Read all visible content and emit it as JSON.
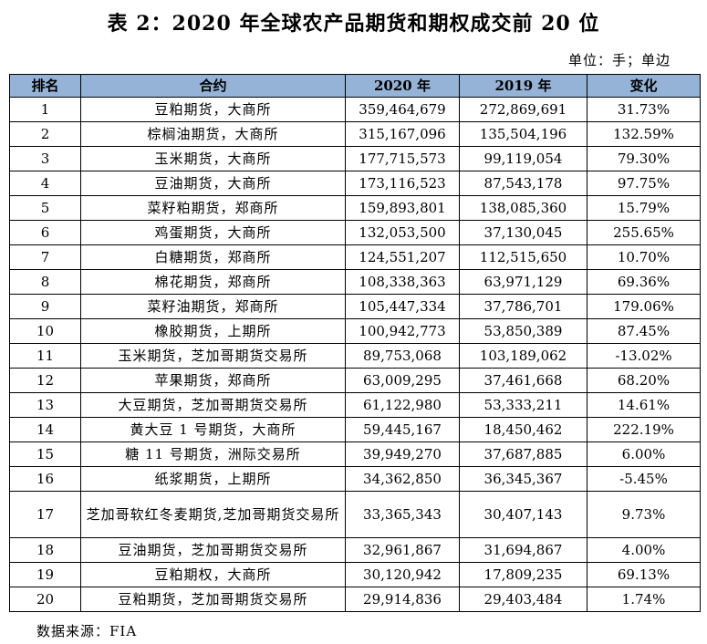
{
  "title": "表 2：2020 年全球农产品期货和期权成交前 20 位",
  "unit_note": "单位：手；单边",
  "table": {
    "headers": [
      "排名",
      "合约",
      "2020 年",
      "2019 年",
      "变化"
    ],
    "rows": [
      {
        "rank": "1",
        "contract": "豆粕期货，大商所",
        "y2020": "359,464,679",
        "y2019": "272,869,691",
        "change": "31.73%"
      },
      {
        "rank": "2",
        "contract": "棕榈油期货，大商所",
        "y2020": "315,167,096",
        "y2019": "135,504,196",
        "change": "132.59%"
      },
      {
        "rank": "3",
        "contract": "玉米期货，大商所",
        "y2020": "177,715,573",
        "y2019": "99,119,054",
        "change": "79.30%"
      },
      {
        "rank": "4",
        "contract": "豆油期货，大商所",
        "y2020": "173,116,523",
        "y2019": "87,543,178",
        "change": "97.75%"
      },
      {
        "rank": "5",
        "contract": "菜籽粕期货，郑商所",
        "y2020": "159,893,801",
        "y2019": "138,085,360",
        "change": "15.79%"
      },
      {
        "rank": "6",
        "contract": "鸡蛋期货，大商所",
        "y2020": "132,053,500",
        "y2019": "37,130,045",
        "change": "255.65%"
      },
      {
        "rank": "7",
        "contract": "白糖期货，郑商所",
        "y2020": "124,551,207",
        "y2019": "112,515,650",
        "change": "10.70%"
      },
      {
        "rank": "8",
        "contract": "棉花期货，郑商所",
        "y2020": "108,338,363",
        "y2019": "63,971,129",
        "change": "69.36%"
      },
      {
        "rank": "9",
        "contract": "菜籽油期货，郑商所",
        "y2020": "105,447,334",
        "y2019": "37,786,701",
        "change": "179.06%"
      },
      {
        "rank": "10",
        "contract": "橡胶期货，上期所",
        "y2020": "100,942,773",
        "y2019": "53,850,389",
        "change": "87.45%"
      },
      {
        "rank": "11",
        "contract": "玉米期货，芝加哥期货交易所",
        "y2020": "89,753,068",
        "y2019": "103,189,062",
        "change": "-13.02%"
      },
      {
        "rank": "12",
        "contract": "苹果期货，郑商所",
        "y2020": "63,009,295",
        "y2019": "37,461,668",
        "change": "68.20%"
      },
      {
        "rank": "13",
        "contract": "大豆期货，芝加哥期货交易所",
        "y2020": "61,122,980",
        "y2019": "53,333,211",
        "change": "14.61%"
      },
      {
        "rank": "14",
        "contract": "黄大豆 1 号期货，大商所",
        "y2020": "59,445,167",
        "y2019": "18,450,462",
        "change": "222.19%"
      },
      {
        "rank": "15",
        "contract": "糖 11 号期货，洲际交易所",
        "y2020": "39,949,270",
        "y2019": "37,687,885",
        "change": "6.00%"
      },
      {
        "rank": "16",
        "contract": "纸浆期货，上期所",
        "y2020": "34,362,850",
        "y2019": "36,345,367",
        "change": "-5.45%"
      },
      {
        "rank": "17",
        "contract": "芝加哥软红冬麦期货,芝加哥期货交易所",
        "y2020": "33,365,343",
        "y2019": "30,407,143",
        "change": "9.73%"
      },
      {
        "rank": "18",
        "contract": "豆油期货，芝加哥期货交易所",
        "y2020": "32,961,867",
        "y2019": "31,694,867",
        "change": "4.00%"
      },
      {
        "rank": "19",
        "contract": "豆粕期权，大商所",
        "y2020": "30,120,942",
        "y2019": "17,809,235",
        "change": "69.13%"
      },
      {
        "rank": "20",
        "contract": "豆粕期货，芝加哥期货交易所",
        "y2020": "29,914,836",
        "y2019": "29,403,484",
        "change": "1.74%"
      }
    ]
  },
  "source": "数据来源：FIA"
}
